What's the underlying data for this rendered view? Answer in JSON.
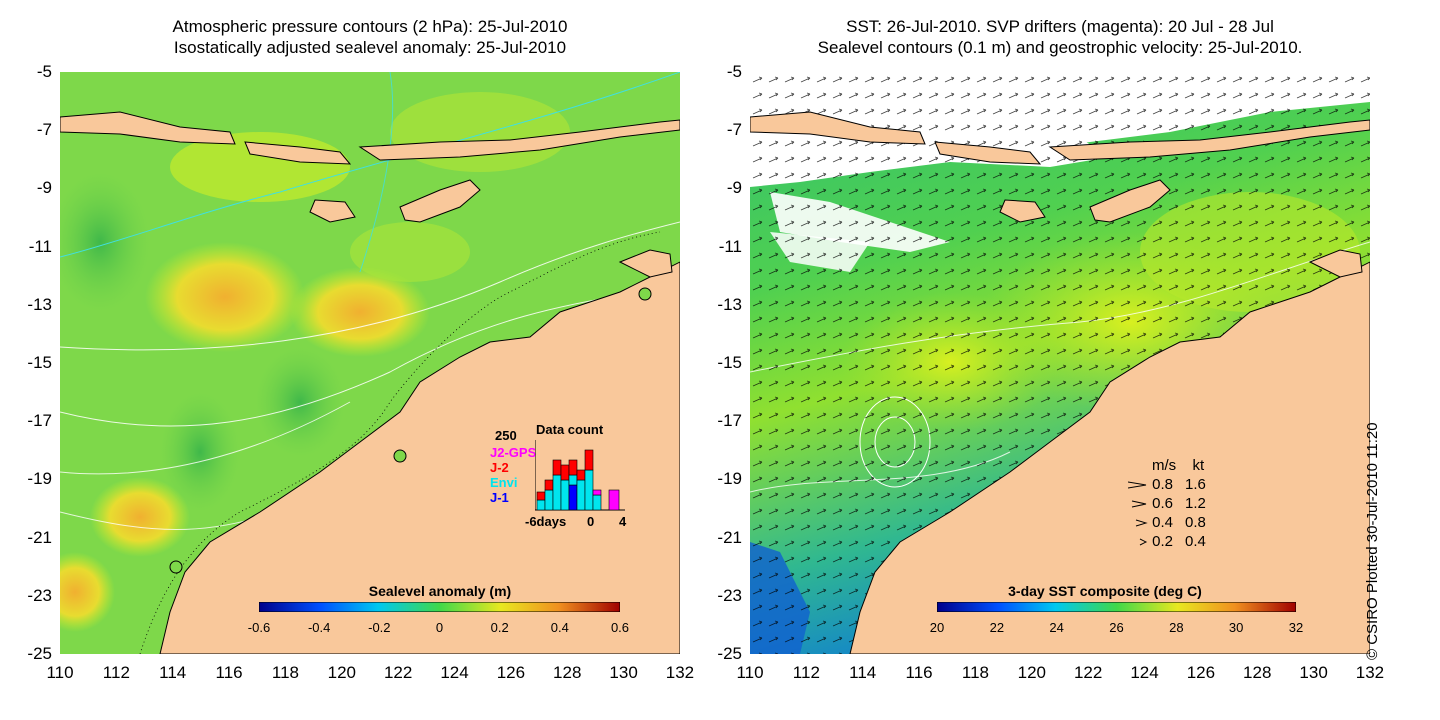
{
  "left_panel": {
    "title_line1": "Atmospheric pressure contours (2 hPa): 25-Jul-2010",
    "title_line2": "Isostatically adjusted sealevel anomaly: 25-Jul-2010",
    "colorbar": {
      "title": "Sealevel anomaly (m)",
      "ticks": [
        "-0.6",
        "-0.4",
        "-0.2",
        "0",
        "0.2",
        "0.4",
        "0.6"
      ]
    },
    "inset": {
      "title": "Data count",
      "y_max_label": "250",
      "series_labels": [
        {
          "label": "J2-GPS",
          "color": "#ff00ff"
        },
        {
          "label": "J-2",
          "color": "#ff0000"
        },
        {
          "label": "Envi",
          "color": "#00e5ee"
        },
        {
          "label": "J-1",
          "color": "#0000ff"
        }
      ],
      "x_labels": [
        "-6days",
        "0",
        "4"
      ]
    }
  },
  "right_panel": {
    "title_line1": "SST: 26-Jul-2010. SVP drifters (magenta): 20 Jul - 28 Jul",
    "title_line2": "Sealevel contours (0.1 m) and geostrophic velocity: 25-Jul-2010.",
    "colorbar": {
      "title": "3-day SST composite (deg C)",
      "ticks": [
        "20",
        "22",
        "24",
        "26",
        "28",
        "30",
        "32"
      ]
    },
    "velocity_legend": {
      "header_ms": "m/s",
      "header_kt": "kt",
      "rows": [
        {
          "ms": "0.8",
          "kt": "1.6"
        },
        {
          "ms": "0.6",
          "kt": "1.2"
        },
        {
          "ms": "0.4",
          "kt": "0.8"
        },
        {
          "ms": "0.2",
          "kt": "0.4"
        }
      ]
    }
  },
  "axes": {
    "y_ticks": [
      "-5",
      "-7",
      "-9",
      "-11",
      "-13",
      "-15",
      "-17",
      "-19",
      "-21",
      "-23",
      "-25"
    ],
    "x_ticks": [
      "110",
      "112",
      "114",
      "116",
      "118",
      "120",
      "122",
      "124",
      "126",
      "128",
      "130",
      "132"
    ]
  },
  "copyright": "© CSIRO Plotted 30-Jul-2010 11:20",
  "colors": {
    "land": "#f9c89b",
    "ocean_green": "#7ed84a",
    "ocean_yellow": "#c8ec2a",
    "ocean_orange": "#f0c030",
    "coast": "#000000"
  }
}
